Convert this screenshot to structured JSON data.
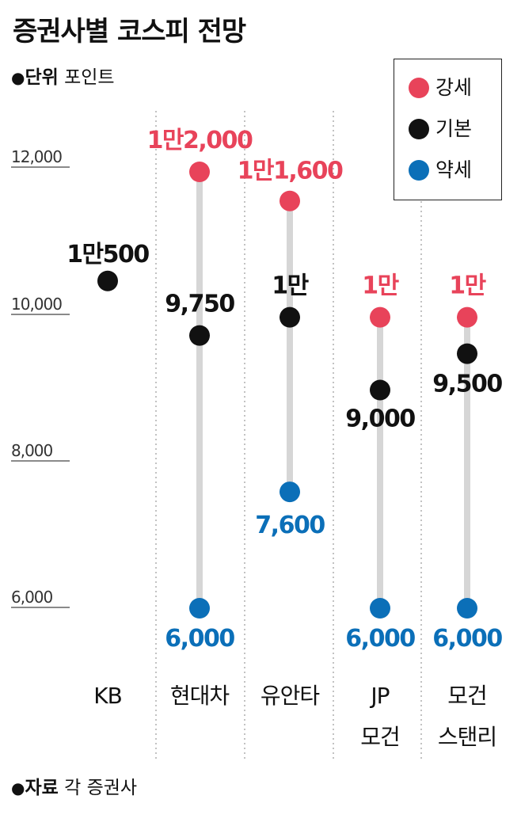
{
  "title": "증권사별 코스피 전망",
  "unit": {
    "bullet": "●",
    "label": "단위",
    "value": "포인트"
  },
  "source": {
    "bullet": "●",
    "label": "자료",
    "value": "각 증권사"
  },
  "legend": [
    {
      "label": "강세",
      "color": "#E8435A"
    },
    {
      "label": "기본",
      "color": "#111111"
    },
    {
      "label": "약세",
      "color": "#0B6FB8"
    }
  ],
  "chart_data": {
    "type": "dot-range",
    "y_ticks": [
      {
        "value": 12000,
        "label": "12,000"
      },
      {
        "value": 10000,
        "label": "10,000"
      },
      {
        "value": 8000,
        "label": "8,000"
      },
      {
        "value": 6000,
        "label": "6,000"
      }
    ],
    "grid": false,
    "legend_position": "top-right",
    "categories": [
      {
        "name": [
          "KB"
        ],
        "bull": null,
        "base": 10500,
        "bear": null,
        "bull_label": null,
        "base_label": "1만500",
        "bear_label": null
      },
      {
        "name": [
          "현대차"
        ],
        "bull": 12000,
        "base": 9750,
        "bear": 6000,
        "bull_label": "1만2,000",
        "base_label": "9,750",
        "bear_label": "6,000"
      },
      {
        "name": [
          "유안타"
        ],
        "bull": 11600,
        "base": 10000,
        "bear": 7600,
        "bull_label": "1만1,600",
        "base_label": "1만",
        "bear_label": "7,600"
      },
      {
        "name": [
          "JP",
          "모건"
        ],
        "bull": 10000,
        "base": 9000,
        "bear": 6000,
        "bull_label": "1만",
        "base_label": "9,000",
        "bear_label": "6,000"
      },
      {
        "name": [
          "모건",
          "스탠리"
        ],
        "bull": 10000,
        "base": 9500,
        "bear": 6000,
        "bull_label": "1만",
        "base_label": "9,500",
        "bear_label": "6,000"
      }
    ]
  }
}
